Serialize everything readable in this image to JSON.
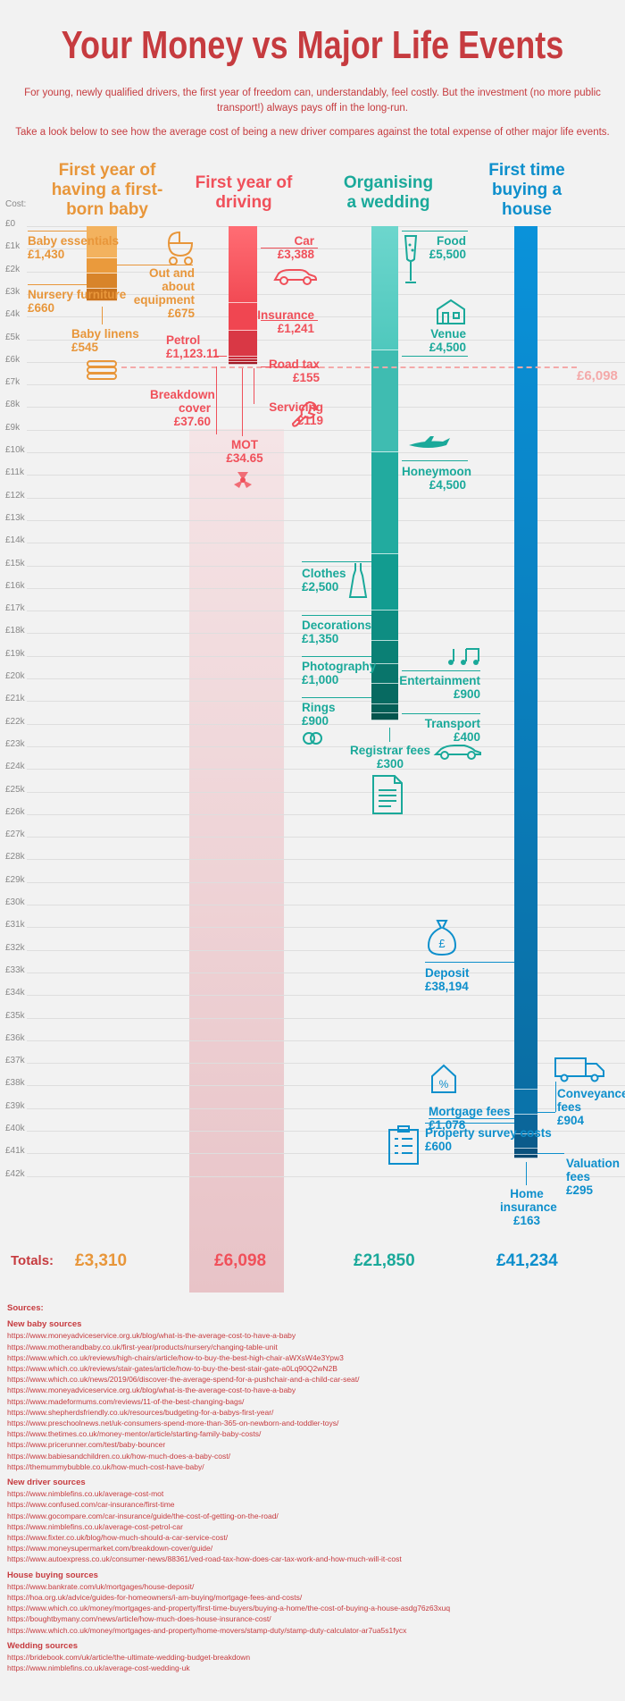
{
  "title": "Your Money vs Major Life Events",
  "intro1": "For young, newly qualified drivers, the first year of freedom can, understandably, feel costly. But the investment (no more public transport!) always pays off in the long-run.",
  "intro2": "Take a look below to see how the average cost of being a new driver compares against the total expense of other major life events.",
  "cost_label": "Cost:",
  "reference_label": "£6,098",
  "totals_label": "Totals:",
  "colors": {
    "baby": "#e8963a",
    "driving": "#f0505a",
    "wedding": "#1aa99a",
    "house": "#0d8fcc",
    "title": "#c63b3f"
  },
  "chart_data": {
    "type": "bar",
    "title": "Your Money vs Major Life Events",
    "ylabel": "Cost:",
    "ylim": [
      0,
      42000
    ],
    "y_ticks": [
      "£0",
      "£1k",
      "£2k",
      "£3k",
      "£4k",
      "£5k",
      "£6k",
      "£7k",
      "£8k",
      "£9k",
      "£10k",
      "£11k",
      "£12k",
      "£13k",
      "£14k",
      "£15k",
      "£16k",
      "£17k",
      "£18k",
      "£19k",
      "£20k",
      "£21k",
      "£22k",
      "£23k",
      "£24k",
      "£25k",
      "£26k",
      "£27k",
      "£28k",
      "£29k",
      "£30k",
      "£31k",
      "£32k",
      "£33k",
      "£34k",
      "£35k",
      "£36k",
      "£37k",
      "£38k",
      "£39k",
      "£40k",
      "£41k",
      "£42k"
    ],
    "reference_line": 6098,
    "series": [
      {
        "name": "First year of having a first-born baby",
        "key": "baby",
        "total": "£3,310",
        "segments": [
          {
            "label": "Baby essentials",
            "amount": "£1,430",
            "value": 1430
          },
          {
            "label": "Out and about equipment",
            "amount": "£675",
            "value": 675
          },
          {
            "label": "Nursery furniture",
            "amount": "£660",
            "value": 660
          },
          {
            "label": "Baby linens",
            "amount": "£545",
            "value": 545
          }
        ]
      },
      {
        "name": "First year of driving",
        "key": "driving",
        "total": "£6,098",
        "segments": [
          {
            "label": "Car",
            "amount": "£3,388",
            "value": 3388
          },
          {
            "label": "Insurance",
            "amount": "£1,241",
            "value": 1241
          },
          {
            "label": "Petrol",
            "amount": "£1,123.11",
            "value": 1123.11
          },
          {
            "label": "Road tax",
            "amount": "£155",
            "value": 155
          },
          {
            "label": "Servicing",
            "amount": "£119",
            "value": 119
          },
          {
            "label": "Breakdown cover",
            "amount": "£37.60",
            "value": 37.6
          },
          {
            "label": "MOT",
            "amount": "£34.65",
            "value": 34.65
          }
        ]
      },
      {
        "name": "Organising a wedding",
        "key": "wedding",
        "total": "£21,850",
        "segments": [
          {
            "label": "Food",
            "amount": "£5,500",
            "value": 5500
          },
          {
            "label": "Venue",
            "amount": "£4,500",
            "value": 4500
          },
          {
            "label": "Honeymoon",
            "amount": "£4,500",
            "value": 4500
          },
          {
            "label": "Clothes",
            "amount": "£2,500",
            "value": 2500
          },
          {
            "label": "Decorations",
            "amount": "£1,350",
            "value": 1350
          },
          {
            "label": "Photography",
            "amount": "£1,000",
            "value": 1000
          },
          {
            "label": "Entertainment",
            "amount": "£900",
            "value": 900
          },
          {
            "label": "Rings",
            "amount": "£900",
            "value": 900
          },
          {
            "label": "Transport",
            "amount": "£400",
            "value": 400
          },
          {
            "label": "Registrar fees",
            "amount": "£300",
            "value": 300
          }
        ]
      },
      {
        "name": "First time buying a house",
        "key": "house",
        "total": "£41,234",
        "segments": [
          {
            "label": "Deposit",
            "amount": "£38,194",
            "value": 38194
          },
          {
            "label": "Mortgage fees",
            "amount": "£1,078",
            "value": 1078
          },
          {
            "label": "Conveyance fees",
            "amount": "£904",
            "value": 904
          },
          {
            "label": "Property survey costs",
            "amount": "£600",
            "value": 600
          },
          {
            "label": "Valuation fees",
            "amount": "£295",
            "value": 295
          },
          {
            "label": "Home insurance",
            "amount": "£163",
            "value": 163
          }
        ]
      }
    ]
  },
  "sources": {
    "title": "Sources:",
    "groups": [
      {
        "name": "New baby sources",
        "links": [
          "https://www.moneyadviceservice.org.uk/blog/what-is-the-average-cost-to-have-a-baby",
          "https://www.motherandbaby.co.uk/first-year/products/nursery/changing-table-unit",
          "https://www.which.co.uk/reviews/high-chairs/article/how-to-buy-the-best-high-chair-aWXsW4e3Ypw3",
          "https://www.which.co.uk/reviews/stair-gates/article/how-to-buy-the-best-stair-gate-a0Lq90Q2wN2B",
          "https://www.which.co.uk/news/2019/06/discover-the-average-spend-for-a-pushchair-and-a-child-car-seat/",
          "https://www.moneyadviceservice.org.uk/blog/what-is-the-average-cost-to-have-a-baby",
          "https://www.madeformums.com/reviews/11-of-the-best-changing-bags/",
          "https://www.shepherdsfriendly.co.uk/resources/budgeting-for-a-babys-first-year/",
          "https://www.preschoolnews.net/uk-consumers-spend-more-than-365-on-newborn-and-toddler-toys/",
          "https://www.thetimes.co.uk/money-mentor/article/starting-family-baby-costs/",
          "https://www.pricerunner.com/test/baby-bouncer",
          "https://www.babiesandchildren.co.uk/how-much-does-a-baby-cost/",
          "https://themummybubble.co.uk/how-much-cost-have-baby/"
        ]
      },
      {
        "name": "New driver sources",
        "links": [
          "https://www.nimblefins.co.uk/average-cost-mot",
          "https://www.confused.com/car-insurance/first-time",
          "https://www.gocompare.com/car-insurance/guide/the-cost-of-getting-on-the-road/",
          "https://www.nimblefins.co.uk/average-cost-petrol-car",
          "https://www.fixter.co.uk/blog/how-much-should-a-car-service-cost/",
          "https://www.moneysupermarket.com/breakdown-cover/guide/",
          "https://www.autoexpress.co.uk/consumer-news/88361/ved-road-tax-how-does-car-tax-work-and-how-much-will-it-cost"
        ]
      },
      {
        "name": "House buying sources",
        "links": [
          "https://www.bankrate.com/uk/mortgages/house-deposit/",
          "https://hoa.org.uk/advice/guides-for-homeowners/i-am-buying/mortgage-fees-and-costs/",
          "https://www.which.co.uk/money/mortgages-and-property/first-time-buyers/buying-a-home/the-cost-of-buying-a-house-asdg76z63xuq",
          "https://boughtbymany.com/news/article/how-much-does-house-insurance-cost/",
          "https://www.which.co.uk/money/mortgages-and-property/home-movers/stamp-duty/stamp-duty-calculator-ar7ua5s1fycx"
        ]
      },
      {
        "name": "Wedding sources",
        "links": [
          "https://bridebook.com/uk/article/the-ultimate-wedding-budget-breakdown",
          "https://www.nimblefins.co.uk/average-cost-wedding-uk"
        ]
      }
    ]
  }
}
